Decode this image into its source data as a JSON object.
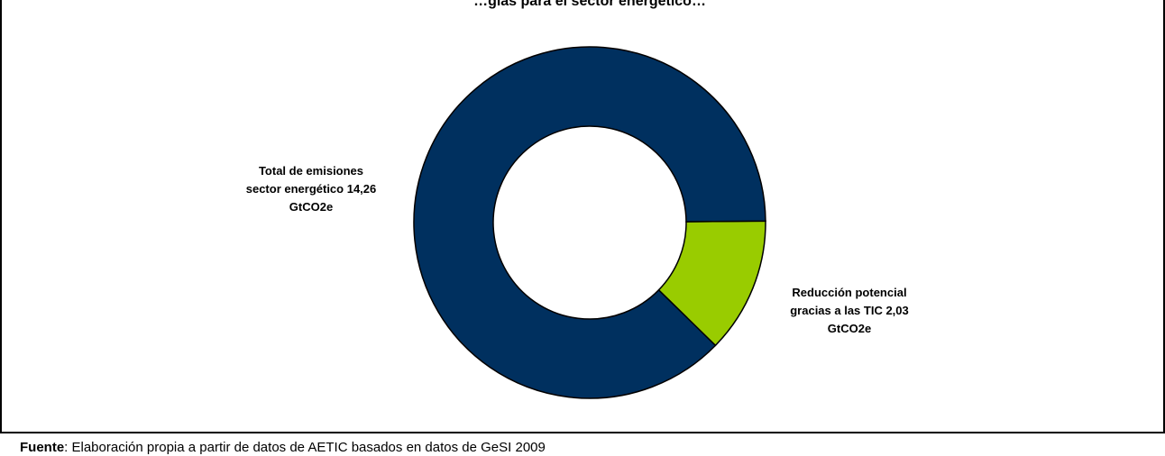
{
  "chart_data": {
    "type": "pie",
    "variant": "donut",
    "title": "…gias para el sector energético…",
    "slices": [
      {
        "label_lines": [
          "Total de emisiones",
          "sector energético 14,26",
          "GtCO2e"
        ],
        "value": 14.26,
        "color": "#00305f"
      },
      {
        "label_lines": [
          "Reducción potencial",
          "gracias a las TIC 2,03",
          "GtCO2e"
        ],
        "value": 2.03,
        "color": "#99cc00"
      }
    ],
    "legend": "none"
  },
  "source": {
    "label": "Fuente",
    "text": ": Elaboración propia a partir de datos de AETIC basados en datos de GeSI 2009"
  }
}
